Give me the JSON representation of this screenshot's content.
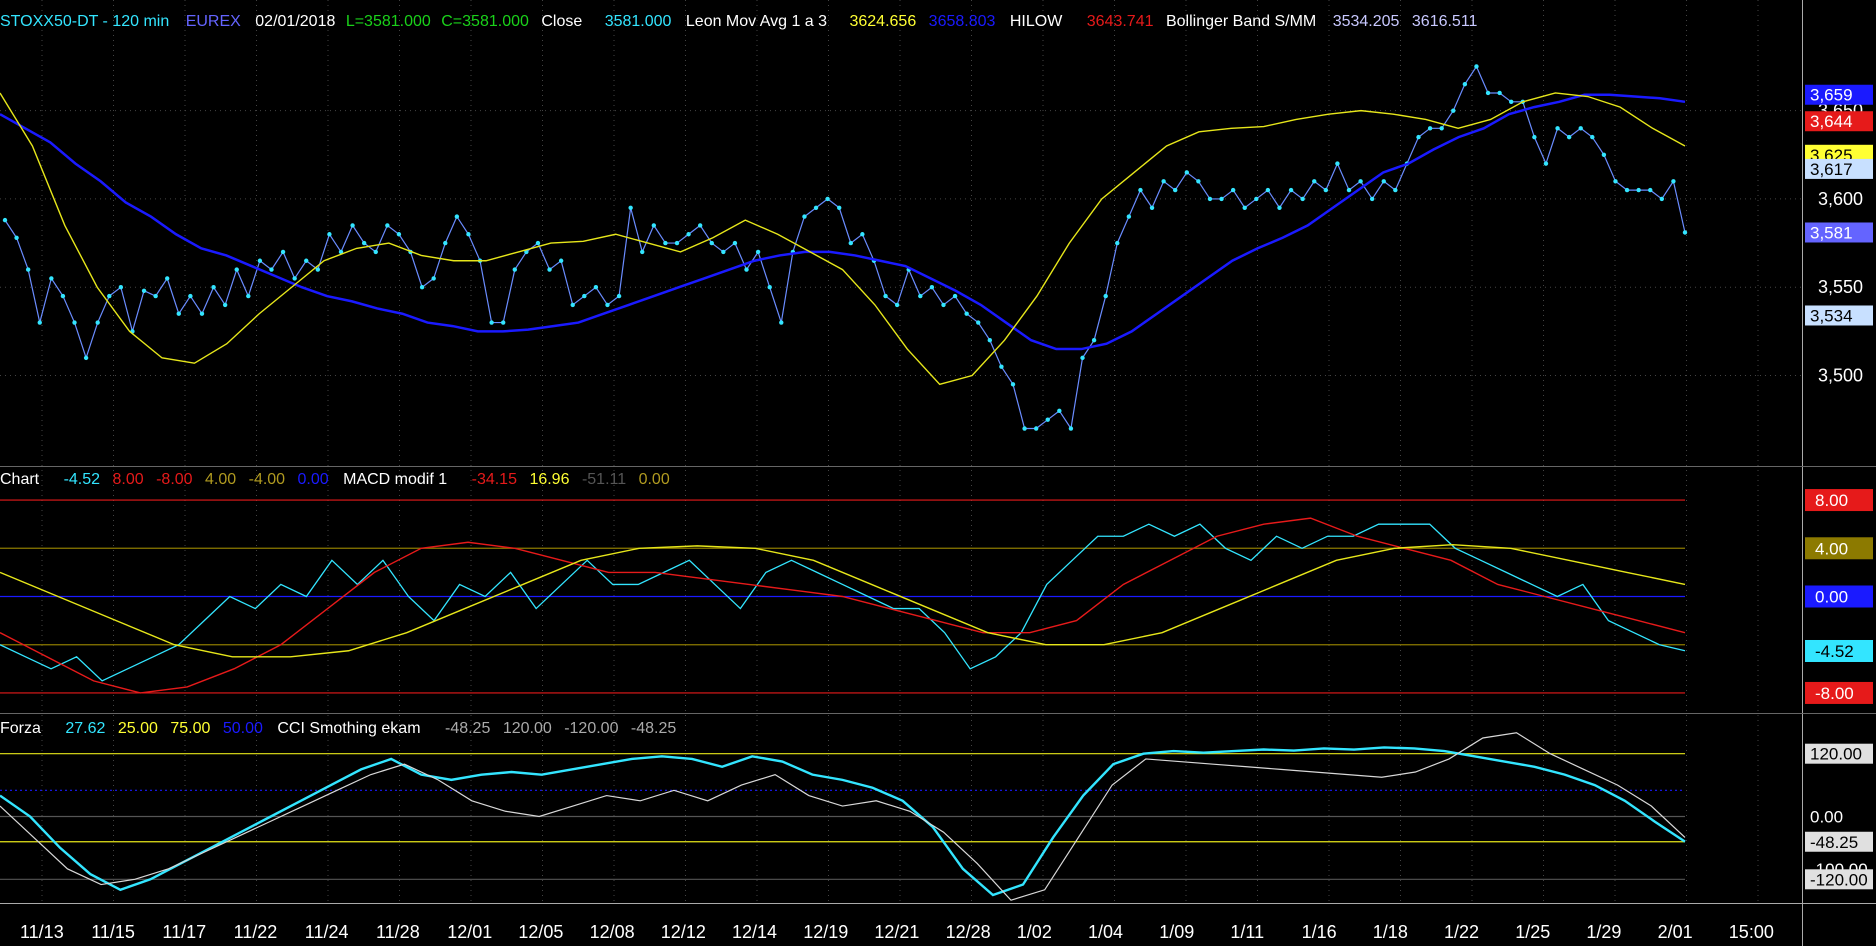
{
  "colors": {
    "background": "#000000",
    "cyan": "#33e5ff",
    "blue": "#1a1aff",
    "yellow": "#e6e61a",
    "red": "#e61a1a",
    "green": "#1ad11a",
    "white": "#d8d8d8",
    "magenta": "#d21ed2",
    "darkgrid": "#3a3a3a",
    "olive": "#8c7a00"
  },
  "header": {
    "symbol": "STOXX50-DT - 120 min",
    "exchange": "EUREX",
    "date": "02/01/2018",
    "last": "L=3581.000",
    "close_eq": "C=3581.000",
    "close_label": "Close",
    "close_value": "3581.000",
    "leon_label": "Leon Mov Avg 1 a 3",
    "leon_v1": "3624.656",
    "leon_v2": "3658.803",
    "hilow_label": "HILOW",
    "hilow_value": "3643.741",
    "bb_label": "Bollinger Band S/MM",
    "bb_v1": "3534.205",
    "bb_v2": "3616.511"
  },
  "macd_header": {
    "label": "Chart",
    "v1": "-4.52",
    "v2": "8.00",
    "v3": "-8.00",
    "v4": "4.00",
    "v5": "-4.00",
    "v6": "0.00",
    "label2": "MACD modif 1",
    "v7": "-34.15",
    "v8": "16.96",
    "v9": "-51.11",
    "v10": "0.00"
  },
  "cci_header": {
    "label": "Forza",
    "v1": "27.62",
    "v2": "25.00",
    "v3": "75.00",
    "v4": "50.00",
    "label2": "CCI Smothing ekam",
    "v5": "-48.25",
    "v6": "120.00",
    "v7": "-120.00",
    "v8": "-48.25"
  },
  "chart_data": [
    {
      "type": "line",
      "panel": "price",
      "y_ticks": [
        "3,500",
        "3,550",
        "3,600",
        "3,650"
      ],
      "ylim": [
        3455,
        3690
      ],
      "right_badges": [
        {
          "label": "3,659",
          "value": 3659,
          "bg": "#1a1aff",
          "fg": "#ffffff"
        },
        {
          "label": "3,644",
          "value": 3644,
          "bg": "#e61a1a",
          "fg": "#ffffff"
        },
        {
          "label": "3,625",
          "value": 3625,
          "bg": "#ffff33",
          "fg": "#000000"
        },
        {
          "label": "3,617",
          "value": 3617,
          "bg": "#c8e0ff",
          "fg": "#000000"
        },
        {
          "label": "3,581",
          "value": 3581,
          "bg": "#6464ff",
          "fg": "#ffffff"
        },
        {
          "label": "3,534",
          "value": 3534,
          "bg": "#c8e0ff",
          "fg": "#000000"
        }
      ],
      "series": [
        {
          "name": "Close",
          "color": "#33e5ff",
          "values": [
            3588,
            3578,
            3560,
            3530,
            3555,
            3545,
            3530,
            3510,
            3530,
            3545,
            3550,
            3525,
            3548,
            3545,
            3555,
            3535,
            3545,
            3535,
            3550,
            3540,
            3560,
            3545,
            3565,
            3560,
            3570,
            3555,
            3565,
            3560,
            3580,
            3570,
            3585,
            3575,
            3570,
            3585,
            3580,
            3570,
            3550,
            3555,
            3575,
            3590,
            3580,
            3565,
            3530,
            3530,
            3560,
            3570,
            3575,
            3560,
            3565,
            3540,
            3545,
            3550,
            3540,
            3545,
            3595,
            3570,
            3585,
            3575,
            3575,
            3580,
            3585,
            3575,
            3570,
            3575,
            3560,
            3570,
            3550,
            3530,
            3570,
            3590,
            3595,
            3600,
            3595,
            3575,
            3580,
            3565,
            3545,
            3540,
            3560,
            3545,
            3550,
            3540,
            3545,
            3535,
            3530,
            3520,
            3505,
            3495,
            3470,
            3470,
            3475,
            3480,
            3470,
            3510,
            3520,
            3545,
            3575,
            3590,
            3605,
            3595,
            3610,
            3605,
            3615,
            3610,
            3600,
            3600,
            3605,
            3595,
            3600,
            3605,
            3595,
            3605,
            3600,
            3610,
            3605,
            3620,
            3605,
            3610,
            3600,
            3610,
            3605,
            3620,
            3635,
            3640,
            3640,
            3650,
            3665,
            3675,
            3660,
            3660,
            3655,
            3655,
            3635,
            3620,
            3640,
            3635,
            3640,
            3635,
            3625,
            3610,
            3605,
            3605,
            3605,
            3600,
            3610,
            3581
          ]
        },
        {
          "name": "",
          "color": "#1a1aff",
          "values": [
            3648,
            3640,
            3632,
            3620,
            3610,
            3598,
            3590,
            3580,
            3572,
            3568,
            3562,
            3556,
            3550,
            3545,
            3542,
            3538,
            3535,
            3530,
            3528,
            3525,
            3525,
            3526,
            3528,
            3530,
            3535,
            3540,
            3545,
            3550,
            3555,
            3560,
            3565,
            3568,
            3570,
            3570,
            3568,
            3565,
            3562,
            3555,
            3548,
            3540,
            3530,
            3520,
            3515,
            3515,
            3518,
            3525,
            3535,
            3545,
            3555,
            3565,
            3572,
            3578,
            3585,
            3595,
            3605,
            3615,
            3620,
            3628,
            3635,
            3640,
            3648,
            3652,
            3655,
            3659,
            3659,
            3658,
            3657,
            3655
          ]
        },
        {
          "name": "",
          "color": "#e6e61a",
          "values": [
            3660,
            3630,
            3585,
            3550,
            3525,
            3510,
            3507,
            3518,
            3535,
            3550,
            3565,
            3572,
            3575,
            3568,
            3565,
            3565,
            3570,
            3575,
            3576,
            3580,
            3575,
            3570,
            3578,
            3588,
            3580,
            3570,
            3560,
            3540,
            3515,
            3495,
            3500,
            3520,
            3545,
            3575,
            3600,
            3615,
            3630,
            3638,
            3640,
            3641,
            3645,
            3648,
            3650,
            3648,
            3645,
            3640,
            3645,
            3655,
            3660,
            3658,
            3652,
            3640,
            3630
          ]
        }
      ]
    },
    {
      "type": "line",
      "panel": "macd",
      "levels": [
        8,
        4,
        0,
        -4,
        -8
      ],
      "right_badges": [
        {
          "label": "8.00",
          "value": 8,
          "bg": "#e61a1a",
          "fg": "#ffffff"
        },
        {
          "label": "4.00",
          "value": 4,
          "bg": "#8c7a00",
          "fg": "#ffffff"
        },
        {
          "label": "0.00",
          "value": 0,
          "bg": "#1a1aff",
          "fg": "#ffffff"
        },
        {
          "label": "-4.52",
          "value": -4.52,
          "bg": "#33e5ff",
          "fg": "#000000"
        },
        {
          "label": "-8.00",
          "value": -8,
          "bg": "#e61a1a",
          "fg": "#ffffff"
        }
      ],
      "series": [
        {
          "name": "",
          "color": "#33e5ff",
          "values": [
            -4,
            -5,
            -6,
            -5,
            -7,
            -6,
            -5,
            -4,
            -2,
            0,
            -1,
            1,
            0,
            3,
            1,
            3,
            0,
            -2,
            1,
            0,
            2,
            -1,
            1,
            3,
            1,
            1,
            2,
            3,
            1,
            -1,
            2,
            3,
            2,
            1,
            0,
            -1,
            -1,
            -3,
            -6,
            -5,
            -3,
            1,
            3,
            5,
            5,
            6,
            5,
            6,
            4,
            3,
            5,
            4,
            5,
            5,
            6,
            6,
            6,
            4,
            3,
            2,
            1,
            0,
            1,
            -2,
            -3,
            -4,
            -4.5
          ]
        },
        {
          "name": "",
          "color": "#e61a1a",
          "values": [
            -3,
            -5,
            -7,
            -8,
            -7.5,
            -6,
            -4,
            -1,
            2,
            4,
            4.5,
            4,
            3,
            2,
            2,
            1.5,
            1,
            0.5,
            0,
            -1,
            -2,
            -3,
            -3,
            -2,
            1,
            3,
            5,
            6,
            6.5,
            5,
            4,
            3,
            1,
            0,
            -1,
            -2,
            -3
          ]
        },
        {
          "name": "",
          "color": "#e6e61a",
          "values": [
            2,
            0,
            -2,
            -4,
            -5,
            -5,
            -4.5,
            -3,
            -1,
            1,
            3,
            4,
            4.2,
            4,
            3,
            1,
            -1,
            -3,
            -4,
            -4,
            -3,
            -1,
            1,
            3,
            4,
            4.3,
            4,
            3,
            2,
            1
          ]
        }
      ]
    },
    {
      "type": "line",
      "panel": "cci",
      "levels": [
        120,
        50,
        0,
        -48.25,
        -120
      ],
      "right_badges": [
        {
          "label": "120.00",
          "value": 120,
          "bg": "#e0e0e0",
          "fg": "#000000"
        },
        {
          "label": "0.00",
          "value": 0,
          "bg": "#000000",
          "fg": "#ffffff"
        },
        {
          "label": "-48.25",
          "value": -48.25,
          "bg": "#e0e0e0",
          "fg": "#000000"
        },
        {
          "label": "-100.00",
          "value": -100,
          "bg": "#000000",
          "fg": "#ffffff"
        },
        {
          "label": "-120.00",
          "value": -120,
          "bg": "#e0e0e0",
          "fg": "#000000"
        }
      ],
      "series": [
        {
          "name": "",
          "color": "#33e5ff",
          "values": [
            40,
            0,
            -60,
            -110,
            -140,
            -120,
            -90,
            -60,
            -30,
            0,
            30,
            60,
            90,
            110,
            80,
            70,
            80,
            85,
            80,
            90,
            100,
            110,
            115,
            110,
            95,
            115,
            105,
            80,
            70,
            55,
            30,
            -20,
            -100,
            -150,
            -130,
            -40,
            40,
            100,
            120,
            125,
            122,
            125,
            128,
            126,
            130,
            128,
            132,
            130,
            125,
            115,
            105,
            95,
            80,
            60,
            30,
            -10,
            -48
          ]
        },
        {
          "name": "",
          "color": "#d8d8d8",
          "values": [
            20,
            -40,
            -100,
            -130,
            -120,
            -100,
            -70,
            -40,
            -10,
            20,
            50,
            80,
            100,
            70,
            30,
            10,
            0,
            20,
            40,
            30,
            50,
            30,
            60,
            80,
            40,
            20,
            30,
            10,
            -30,
            -90,
            -160,
            -140,
            -40,
            60,
            110,
            105,
            100,
            95,
            90,
            85,
            80,
            75,
            85,
            110,
            150,
            160,
            120,
            90,
            60,
            20,
            -40
          ]
        }
      ]
    }
  ],
  "x_axis": {
    "labels": [
      "11/13",
      "11/15",
      "11/17",
      "11/22",
      "11/24",
      "11/28",
      "12/01",
      "12/05",
      "12/08",
      "12/12",
      "12/14",
      "12/19",
      "12/21",
      "12/28",
      "1/02",
      "1/04",
      "1/09",
      "1/11",
      "1/16",
      "1/18",
      "1/22",
      "1/25",
      "1/29",
      "2/01",
      "15:00"
    ]
  }
}
